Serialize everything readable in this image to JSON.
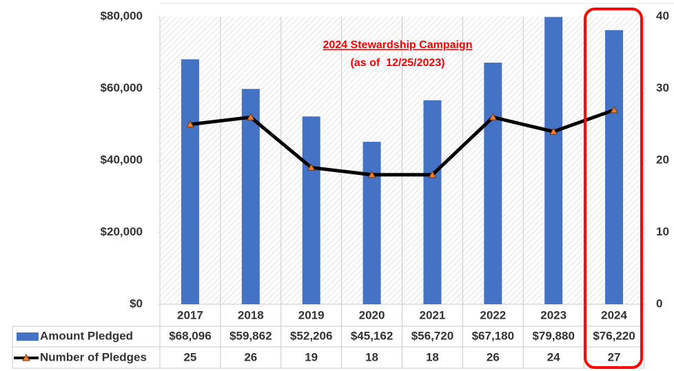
{
  "chart_data": {
    "type": "bar",
    "categories": [
      "2017",
      "2018",
      "2019",
      "2020",
      "2021",
      "2022",
      "2023",
      "2024"
    ],
    "series": [
      {
        "name": "Amount Pledged",
        "color": "#4472c4",
        "type": "bar",
        "values": [
          68096,
          59862,
          52206,
          45162,
          56720,
          67180,
          79880,
          76220
        ],
        "value_labels": [
          "$68,096",
          "$59,862",
          "$52,206",
          "$45,162",
          "$56,720",
          "$67,180",
          "$79,880",
          "$76,220"
        ]
      },
      {
        "name": "Number of Pledges",
        "color": "#000000",
        "marker_color": "#ed7d31",
        "type": "line",
        "axis": "y2",
        "values": [
          25,
          26,
          19,
          18,
          18,
          26,
          24,
          27
        ]
      }
    ],
    "ylim": [
      0,
      80000
    ],
    "yticks": [
      {
        "value": 0,
        "label": "$0"
      },
      {
        "value": 20000,
        "label": "$20,000"
      },
      {
        "value": 40000,
        "label": "$40,000"
      },
      {
        "value": 60000,
        "label": "$60,000"
      },
      {
        "value": 80000,
        "label": "$80,000"
      }
    ],
    "y2lim": [
      0,
      40
    ],
    "y2ticks": [
      0,
      10,
      20,
      30,
      40
    ],
    "annotation": {
      "title": "2024 Stewardship Campaign",
      "subtitle": "(as of  12/25/2023)",
      "color": "#ff0000"
    },
    "highlight": {
      "category": "2024",
      "color": "#ff0000"
    }
  }
}
